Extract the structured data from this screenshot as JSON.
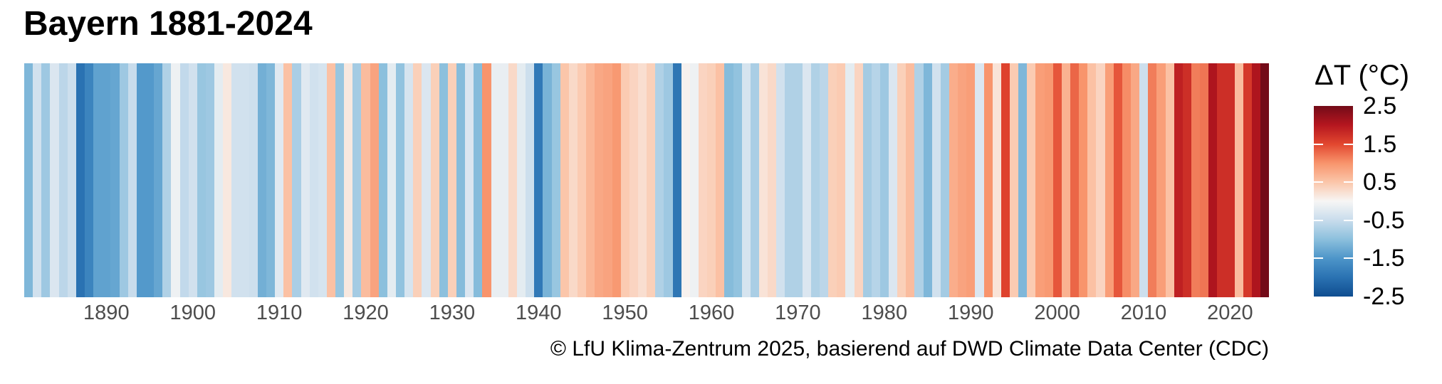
{
  "title": "Bayern 1881-2024",
  "caption": "© LfU Klima-Zentrum 2025, basierend auf DWD Climate Data Center (CDC)",
  "legend": {
    "title": "ΔT (°C)",
    "tick_labels": [
      "2.5",
      "1.5",
      "0.5",
      "-0.5",
      "-1.5",
      "-2.5"
    ]
  },
  "colors": {
    "background": "#ffffff",
    "axis_text": "#4d4d4d",
    "title_text": "#000000"
  },
  "chart_data": {
    "type": "heatmap",
    "variant": "warming-stripes",
    "title": "Bayern 1881-2024",
    "xlabel": "",
    "ylabel": "",
    "unit": "°C",
    "legend_title": "ΔT (°C)",
    "year_start": 1881,
    "year_end": 2024,
    "x_ticks": [
      1890,
      1900,
      1910,
      1920,
      1930,
      1940,
      1950,
      1960,
      1970,
      1980,
      1990,
      2000,
      2010,
      2020
    ],
    "legend_ticks": [
      2.5,
      1.5,
      0.5,
      -0.5,
      -1.5,
      -2.5
    ],
    "legend_inner_dashes": [
      1.5,
      0.5,
      -0.5,
      -1.5
    ],
    "color_scale": {
      "min": -2.5,
      "max": 2.5,
      "anchors": [
        {
          "value": -2.5,
          "color": "#0f4d90"
        },
        {
          "value": -2.0,
          "color": "#2a72b2"
        },
        {
          "value": -1.5,
          "color": "#4d95c9"
        },
        {
          "value": -1.0,
          "color": "#8cc0dd"
        },
        {
          "value": -0.5,
          "color": "#c8dcec"
        },
        {
          "value": 0.0,
          "color": "#f7f6f5"
        },
        {
          "value": 0.5,
          "color": "#fbc6aa"
        },
        {
          "value": 1.0,
          "color": "#f8946c"
        },
        {
          "value": 1.5,
          "color": "#e2472f"
        },
        {
          "value": 2.0,
          "color": "#b5161f"
        },
        {
          "value": 2.5,
          "color": "#730b18"
        }
      ]
    },
    "values": [
      -1.1,
      -0.4,
      -0.85,
      -0.3,
      -0.6,
      -0.45,
      -2.0,
      -1.75,
      -1.35,
      -1.35,
      -1.3,
      -0.85,
      -0.5,
      -1.45,
      -1.45,
      -1.3,
      -0.7,
      -0.1,
      -0.55,
      -0.4,
      -0.9,
      -0.85,
      -0.2,
      0.15,
      -0.4,
      -0.4,
      -0.45,
      -1.2,
      -1.1,
      -0.25,
      0.55,
      -0.75,
      -0.25,
      -0.4,
      -0.35,
      0.55,
      -0.9,
      0.15,
      -0.8,
      0.6,
      0.85,
      -1.0,
      -0.2,
      -0.95,
      -0.35,
      0.4,
      -0.3,
      0.4,
      -1.0,
      0.4,
      -1.05,
      -0.3,
      -1.05,
      1.0,
      -0.15,
      -0.15,
      0.3,
      -0.2,
      -0.45,
      -1.9,
      -1.15,
      -0.9,
      0.5,
      0.3,
      0.45,
      0.65,
      0.8,
      0.85,
      0.95,
      0.45,
      0.35,
      0.25,
      0.4,
      -0.7,
      -0.85,
      -1.95,
      0.05,
      -0.1,
      0.35,
      0.4,
      0.55,
      -1.05,
      -0.95,
      -0.35,
      -0.75,
      0.2,
      0.3,
      -0.4,
      -0.7,
      -0.7,
      -0.3,
      -0.7,
      -0.6,
      0.4,
      0.45,
      -0.2,
      0.35,
      -0.8,
      -0.65,
      -0.85,
      -0.3,
      0.4,
      0.6,
      -0.7,
      -1.1,
      -0.4,
      -0.8,
      0.75,
      0.85,
      0.9,
      -0.3,
      1.0,
      0.2,
      1.55,
      0.45,
      -1.1,
      0.45,
      0.9,
      0.95,
      1.4,
      0.7,
      1.3,
      1.0,
      0.55,
      0.35,
      0.9,
      1.4,
      1.05,
      0.8,
      -0.45,
      1.15,
      0.9,
      0.55,
      1.9,
      1.75,
      1.15,
      1.2,
      2.05,
      1.75,
      1.75,
      0.6,
      1.65,
      2.05,
      2.5
    ]
  }
}
